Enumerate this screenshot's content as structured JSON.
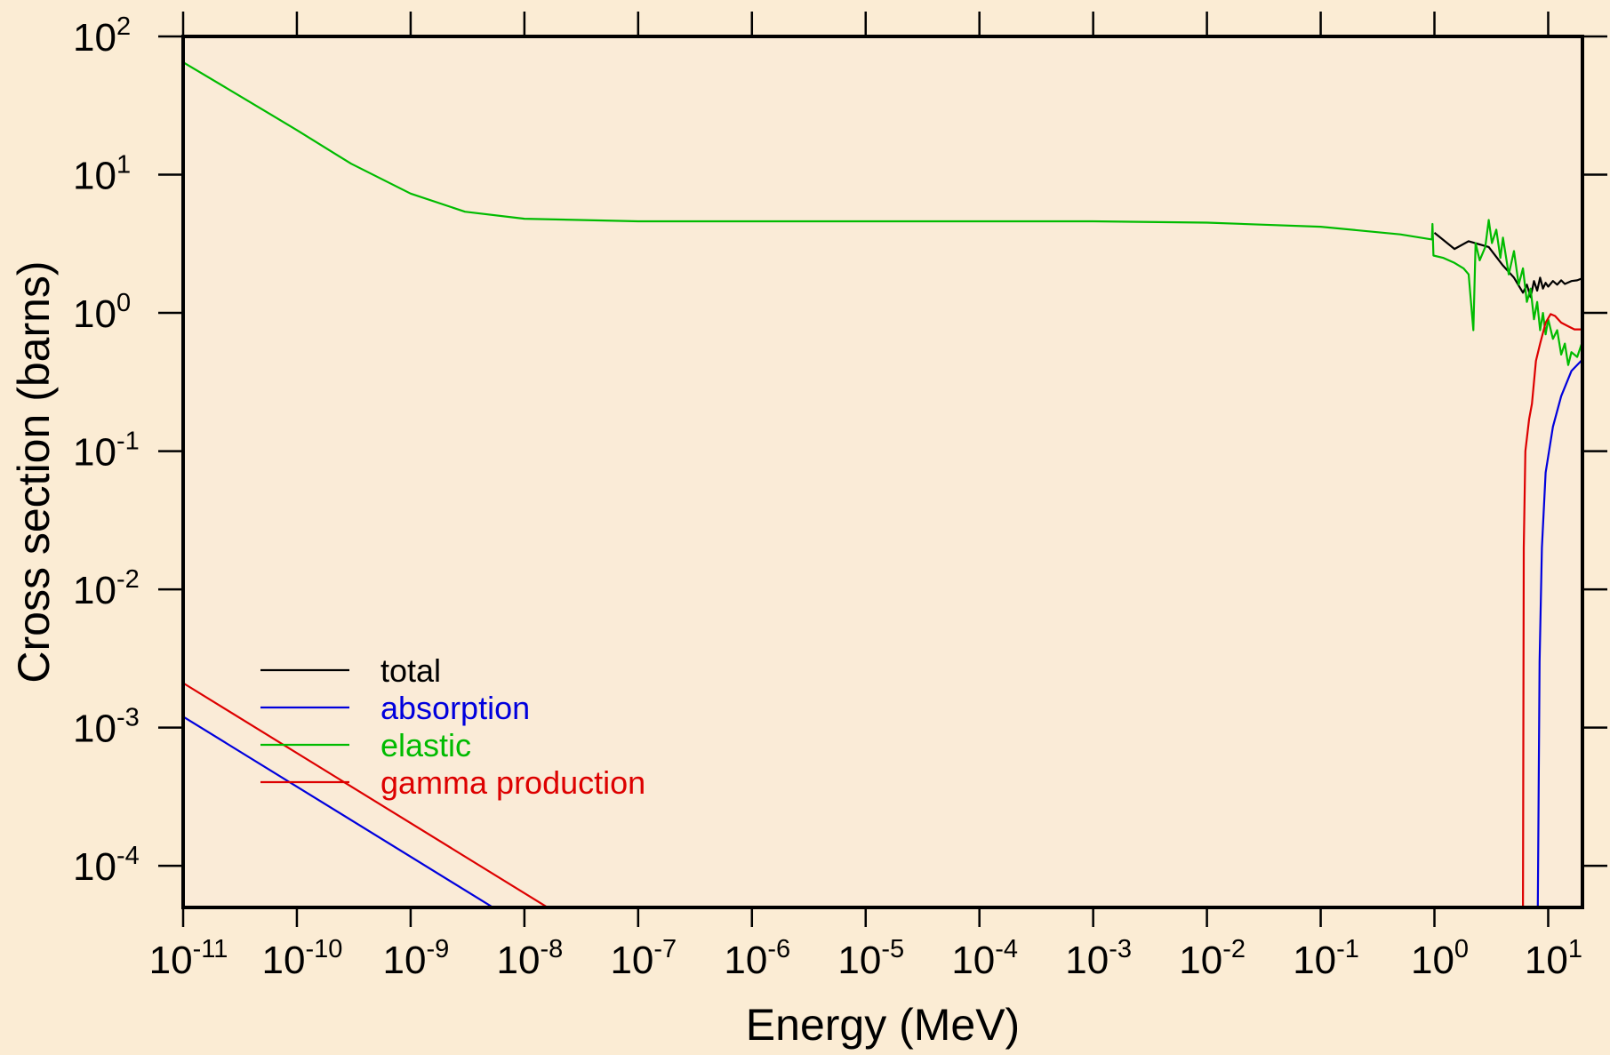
{
  "chart_data": {
    "type": "line",
    "xlabel": "Energy (MeV)",
    "ylabel": "Cross section (barns)",
    "xscale": "log",
    "yscale": "log",
    "xlim": [
      1e-11,
      20
    ],
    "ylim": [
      5e-05,
      100
    ],
    "x_ticks": [
      {
        "base": "10",
        "exp": "-11",
        "value": 1e-11
      },
      {
        "base": "10",
        "exp": "-10",
        "value": 1e-10
      },
      {
        "base": "10",
        "exp": "-9",
        "value": 1e-09
      },
      {
        "base": "10",
        "exp": "-8",
        "value": 1e-08
      },
      {
        "base": "10",
        "exp": "-7",
        "value": 1e-07
      },
      {
        "base": "10",
        "exp": "-6",
        "value": 1e-06
      },
      {
        "base": "10",
        "exp": "-5",
        "value": 1e-05
      },
      {
        "base": "10",
        "exp": "-4",
        "value": 0.0001
      },
      {
        "base": "10",
        "exp": "-3",
        "value": 0.001
      },
      {
        "base": "10",
        "exp": "-2",
        "value": 0.01
      },
      {
        "base": "10",
        "exp": "-1",
        "value": 0.1
      },
      {
        "base": "10",
        "exp": "0",
        "value": 1
      },
      {
        "base": "10",
        "exp": "1",
        "value": 10
      }
    ],
    "y_ticks": [
      {
        "base": "10",
        "exp": "2",
        "value": 100
      },
      {
        "base": "10",
        "exp": "1",
        "value": 10
      },
      {
        "base": "10",
        "exp": "0",
        "value": 1
      },
      {
        "base": "10",
        "exp": "-1",
        "value": 0.1
      },
      {
        "base": "10",
        "exp": "-2",
        "value": 0.01
      },
      {
        "base": "10",
        "exp": "-3",
        "value": 0.001
      },
      {
        "base": "10",
        "exp": "-4",
        "value": 0.0001
      }
    ],
    "legend_position": "bottom-left",
    "grid": false,
    "series": [
      {
        "name": "total",
        "color": "#000000",
        "points": [
          [
            1.0,
            3.8
          ],
          [
            1.5,
            2.9
          ],
          [
            2.0,
            3.3
          ],
          [
            3.0,
            3.0
          ],
          [
            4.0,
            2.2
          ],
          [
            5.0,
            1.8
          ],
          [
            6.0,
            1.4
          ],
          [
            6.5,
            1.6
          ],
          [
            7.0,
            1.3
          ],
          [
            7.5,
            1.7
          ],
          [
            8.0,
            1.45
          ],
          [
            8.5,
            1.8
          ],
          [
            9.0,
            1.5
          ],
          [
            9.5,
            1.65
          ],
          [
            10.0,
            1.55
          ],
          [
            11.0,
            1.7
          ],
          [
            12.0,
            1.6
          ],
          [
            13.0,
            1.72
          ],
          [
            14.0,
            1.62
          ],
          [
            16.0,
            1.7
          ],
          [
            18.0,
            1.72
          ],
          [
            20.0,
            1.78
          ]
        ]
      },
      {
        "name": "absorption",
        "color": "#0000dd",
        "points": [
          [
            1e-11,
            0.0012
          ],
          [
            5.3e-09,
            5e-05
          ],
          [
            8.1,
            5e-05
          ],
          [
            8.4,
            0.003
          ],
          [
            8.8,
            0.02
          ],
          [
            9.5,
            0.07
          ],
          [
            11.0,
            0.15
          ],
          [
            13.0,
            0.25
          ],
          [
            16.0,
            0.38
          ],
          [
            20.0,
            0.46
          ]
        ]
      },
      {
        "name": "elastic",
        "color": "#00bb00",
        "points": [
          [
            1e-11,
            65
          ],
          [
            3e-11,
            38
          ],
          [
            1e-10,
            21
          ],
          [
            3e-10,
            12
          ],
          [
            1e-09,
            7.3
          ],
          [
            3e-09,
            5.4
          ],
          [
            1e-08,
            4.8
          ],
          [
            1e-07,
            4.6
          ],
          [
            1e-06,
            4.6
          ],
          [
            1e-05,
            4.6
          ],
          [
            0.0001,
            4.6
          ],
          [
            0.001,
            4.6
          ],
          [
            0.01,
            4.5
          ],
          [
            0.1,
            4.2
          ],
          [
            0.5,
            3.7
          ],
          [
            0.95,
            3.4
          ],
          [
            0.96,
            4.4
          ],
          [
            0.98,
            2.6
          ],
          [
            1.2,
            2.5
          ],
          [
            1.5,
            2.3
          ],
          [
            1.8,
            2.1
          ],
          [
            2.0,
            1.9
          ],
          [
            2.2,
            0.75
          ],
          [
            2.3,
            3.2
          ],
          [
            2.5,
            2.4
          ],
          [
            2.8,
            3.0
          ],
          [
            3.0,
            4.7
          ],
          [
            3.2,
            3.2
          ],
          [
            3.5,
            4.0
          ],
          [
            3.8,
            2.5
          ],
          [
            4.0,
            3.5
          ],
          [
            4.5,
            1.9
          ],
          [
            5.0,
            2.8
          ],
          [
            5.5,
            1.6
          ],
          [
            6.0,
            2.1
          ],
          [
            6.5,
            1.2
          ],
          [
            7.0,
            1.5
          ],
          [
            7.5,
            0.9
          ],
          [
            8.0,
            1.2
          ],
          [
            8.5,
            0.75
          ],
          [
            9.0,
            1.0
          ],
          [
            9.5,
            0.7
          ],
          [
            10.0,
            0.9
          ],
          [
            11.0,
            0.65
          ],
          [
            12.0,
            0.75
          ],
          [
            13.0,
            0.5
          ],
          [
            14.0,
            0.6
          ],
          [
            15.0,
            0.42
          ],
          [
            16.0,
            0.52
          ],
          [
            18.0,
            0.48
          ],
          [
            20.0,
            0.62
          ]
        ]
      },
      {
        "name": "gamma production",
        "color": "#dd0000",
        "points": [
          [
            1e-11,
            0.0021
          ],
          [
            1.6e-08,
            5e-05
          ],
          [
            6.0,
            5e-05
          ],
          [
            6.1,
            0.02
          ],
          [
            6.3,
            0.1
          ],
          [
            6.8,
            0.17
          ],
          [
            7.2,
            0.22
          ],
          [
            7.8,
            0.45
          ],
          [
            8.5,
            0.6
          ],
          [
            9.5,
            0.85
          ],
          [
            10.5,
            0.98
          ],
          [
            11.5,
            0.95
          ],
          [
            13.0,
            0.85
          ],
          [
            15.0,
            0.8
          ],
          [
            17.0,
            0.76
          ],
          [
            20.0,
            0.76
          ]
        ]
      }
    ]
  }
}
